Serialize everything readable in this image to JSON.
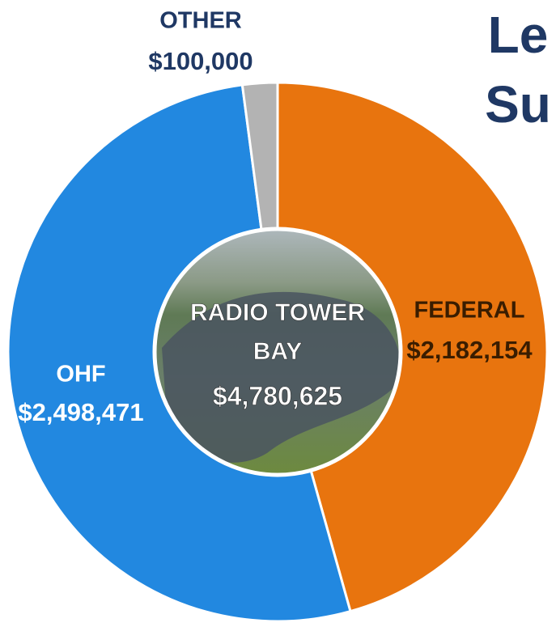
{
  "chart_data": {
    "type": "donut",
    "title_lines": [
      "Le",
      "Su"
    ],
    "categories": [
      "FEDERAL",
      "OHF",
      "OTHER"
    ],
    "values": [
      2182154,
      2498471,
      100000
    ],
    "value_labels": [
      "$2,182,154",
      "$2,498,471",
      "$100,000"
    ],
    "colors": [
      "#e8740e",
      "#2288e0",
      "#b3b3b3"
    ],
    "center_label": "RADIO TOWER BAY",
    "total": 4780625,
    "total_label": "$4,780,625"
  }
}
